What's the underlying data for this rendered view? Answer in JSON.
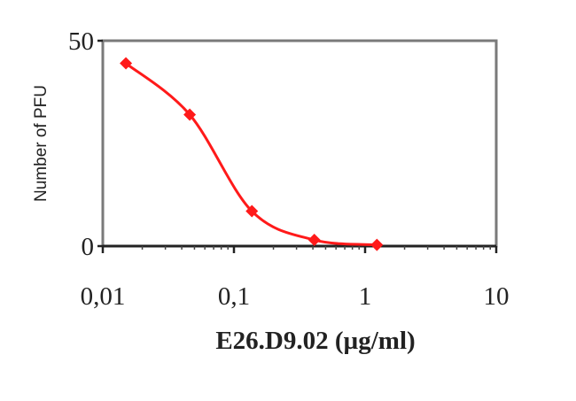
{
  "chart_data": {
    "type": "line",
    "title": "",
    "xlabel": "E26.D9.02 (µg/ml)",
    "ylabel": "Number of PFU",
    "x_scale": "log",
    "xlim": [
      0.01,
      10
    ],
    "ylim": [
      0,
      50
    ],
    "x_tick_labels": [
      "0,01",
      "0,1",
      "1",
      "10"
    ],
    "y_tick_labels": [
      "50",
      "0"
    ],
    "grid": false,
    "legend": "none",
    "smooth": true,
    "series": [
      {
        "color": "#ff1a1a",
        "x": [
          0.015,
          0.046,
          0.137,
          0.41,
          1.23
        ],
        "y": [
          44.5,
          32,
          8.5,
          1.5,
          0.3
        ]
      }
    ]
  }
}
